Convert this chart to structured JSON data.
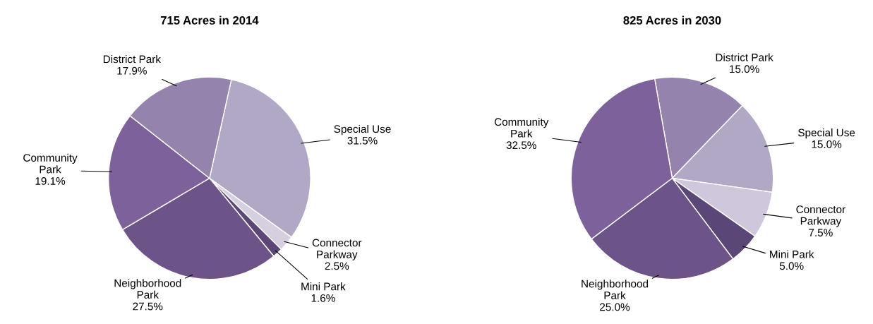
{
  "chart_data": [
    {
      "type": "pie",
      "title": "715 Acres in 2014",
      "categories": [
        "Special Use",
        "Connector\nParkway",
        "Mini Park",
        "Neighborhood\nPark",
        "Community\nPark",
        "District Park"
      ],
      "values": [
        31.5,
        2.5,
        1.6,
        27.5,
        19.1,
        17.9
      ],
      "value_labels": [
        "31.5%",
        "2.5%",
        "1.6%",
        "27.5%",
        "19.1%",
        "17.9%"
      ],
      "colors": [
        "#b1a8c6",
        "#d5cfe0",
        "#5b4777",
        "#6c5489",
        "#7d619b",
        "#9483ad"
      ],
      "legend": false
    },
    {
      "type": "pie",
      "title": "825 Acres in 2030",
      "categories": [
        "District Park",
        "Special Use",
        "Connector\nParkway",
        "Mini Park",
        "Neighborhood\nPark",
        "Community\nPark"
      ],
      "values": [
        15.0,
        15.0,
        7.5,
        5.0,
        25.0,
        32.5
      ],
      "value_labels": [
        "15.0%",
        "15.0%",
        "7.5%",
        "5.0%",
        "25.0%",
        "32.5%"
      ],
      "colors": [
        "#9483ad",
        "#b1a8c6",
        "#cfc8dc",
        "#5b4777",
        "#6c5489",
        "#7d619b"
      ],
      "legend": false
    }
  ]
}
